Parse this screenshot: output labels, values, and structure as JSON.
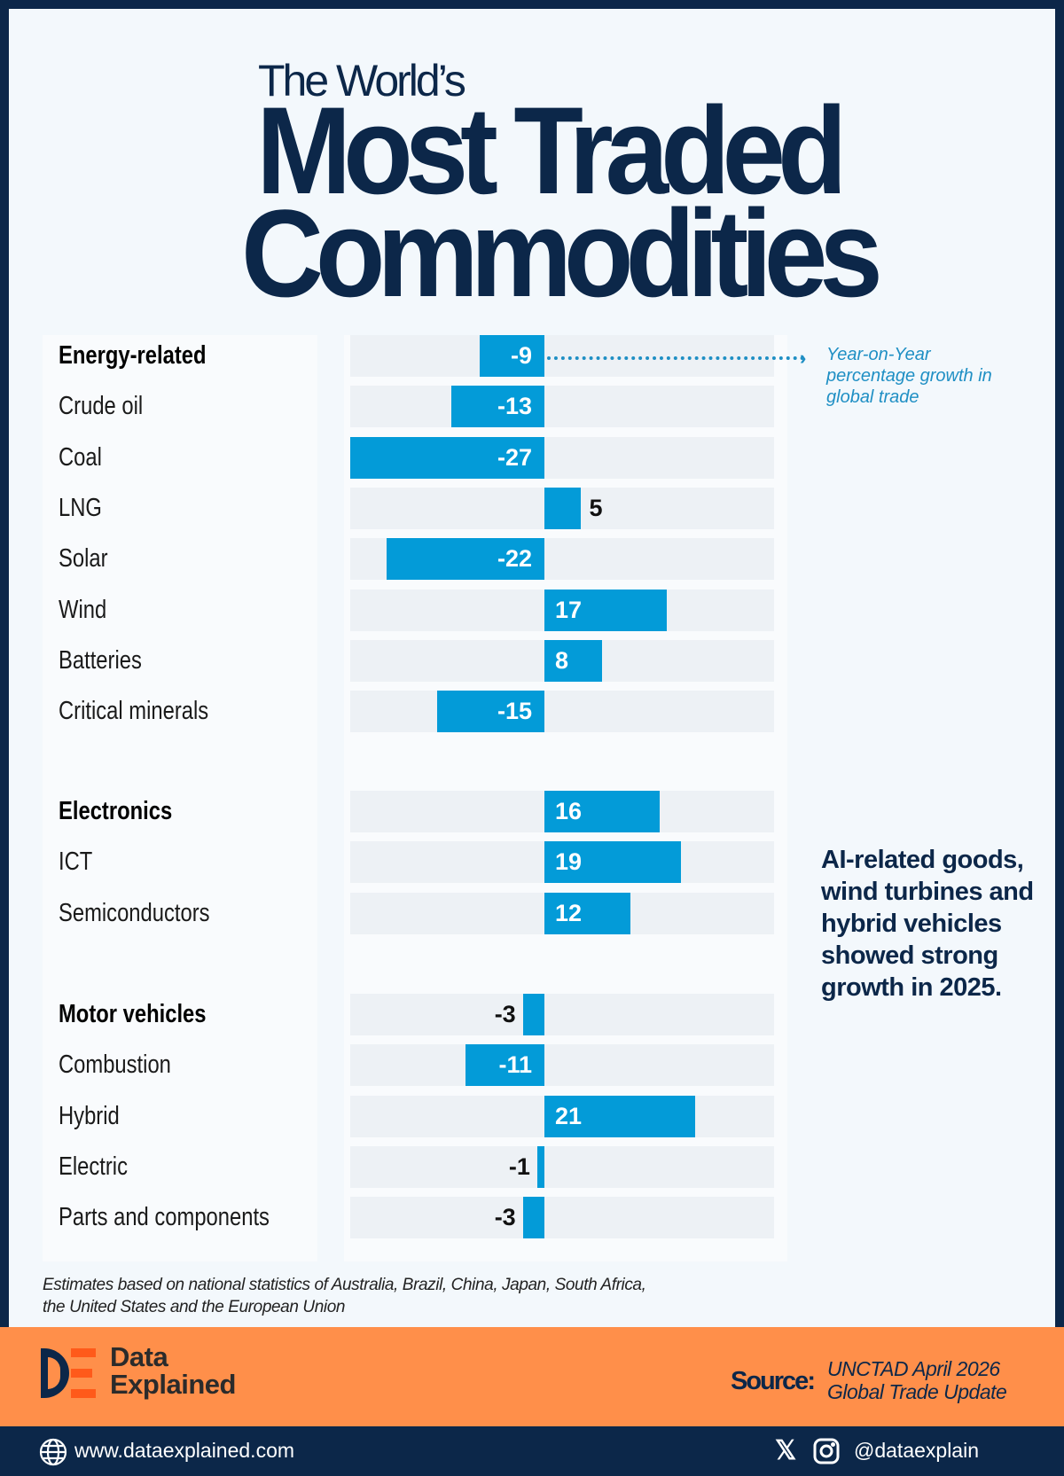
{
  "header": {
    "line1": "The World’s",
    "line2": "Most Traded",
    "line3": "Commodities"
  },
  "chart_data": {
    "type": "bar",
    "orientation": "horizontal",
    "unit": "Year-on-Year percentage growth in global trade",
    "groups": [
      {
        "rows": [
          {
            "label": "Energy-related",
            "value": -9,
            "header": true
          },
          {
            "label": "Crude oil",
            "value": -13
          },
          {
            "label": "Coal",
            "value": -27
          },
          {
            "label": "LNG",
            "value": 5
          },
          {
            "label": "Solar",
            "value": -22
          },
          {
            "label": "Wind",
            "value": 17
          },
          {
            "label": "Batteries",
            "value": 8
          },
          {
            "label": "Critical minerals",
            "value": -15
          }
        ]
      },
      {
        "rows": [
          {
            "label": "Electronics",
            "value": 16,
            "header": true
          },
          {
            "label": "ICT",
            "value": 19
          },
          {
            "label": "Semiconductors",
            "value": 12
          }
        ]
      },
      {
        "rows": [
          {
            "label": "Motor vehicles",
            "value": -3,
            "header": true
          },
          {
            "label": "Combustion",
            "value": -11
          },
          {
            "label": "Hybrid",
            "value": 21
          },
          {
            "label": "Electric",
            "value": -1
          },
          {
            "label": "Parts and components",
            "value": -3
          }
        ]
      }
    ],
    "xlim": [
      -27,
      32
    ],
    "bar_color": "#039bd8",
    "grid": false
  },
  "annotation": "Year-on-Year percentage growth  in global trade",
  "side_note": "AI-related goods, wind turbines and hybrid vehicles showed strong growth in 2025.",
  "footnote_line1": "Estimates based on national statistics of Australia, Brazil, China, Japan, South Africa,",
  "footnote_line2": "the United States and the European Union",
  "brand": {
    "name1": "Data",
    "name2": "Explained",
    "logo_text": "DE"
  },
  "source": {
    "label": "Source:",
    "line1": "UNCTAD April 2026",
    "line2": "Global Trade Update"
  },
  "footer": {
    "website": "www.dataexplained.com",
    "handle": "@dataexplain",
    "icons": [
      "globe-icon",
      "x-icon",
      "instagram-icon"
    ]
  },
  "colors": {
    "navy": "#0c2749",
    "orange": "#ff8f4a",
    "blue": "#039bd8"
  }
}
